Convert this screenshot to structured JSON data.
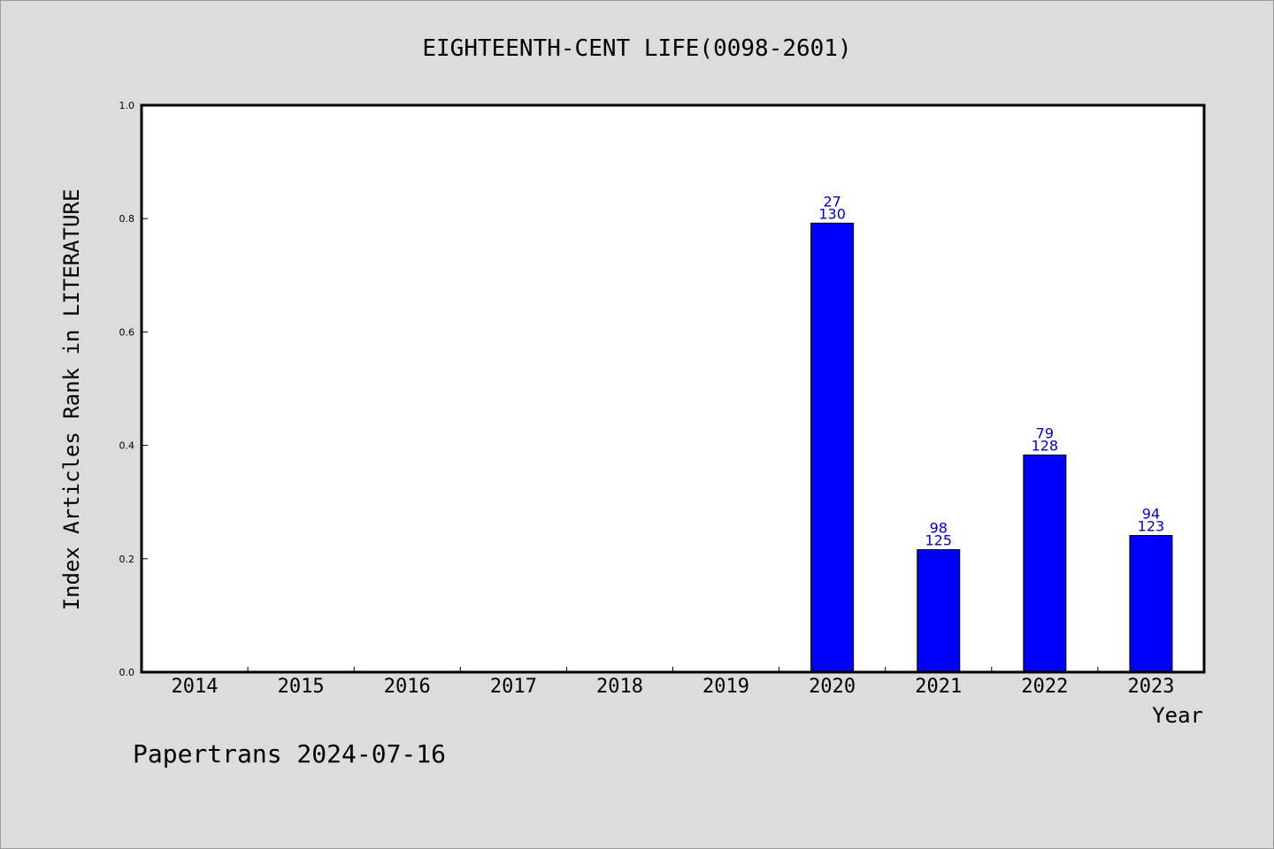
{
  "chart_data": {
    "type": "bar",
    "title": "EIGHTEENTH-CENT LIFE(0098-2601)",
    "xlabel": "Year",
    "ylabel": "Index Articles Rank in LITERATURE",
    "categories": [
      "2014",
      "2015",
      "2016",
      "2017",
      "2018",
      "2019",
      "2020",
      "2021",
      "2022",
      "2023"
    ],
    "values": [
      null,
      null,
      null,
      null,
      null,
      null,
      0.792,
      0.216,
      0.383,
      0.241
    ],
    "labels_top": [
      "",
      "",
      "",
      "",
      "",
      "",
      "27",
      "98",
      "79",
      "94"
    ],
    "labels_bottom": [
      "",
      "",
      "",
      "",
      "",
      "",
      "130",
      "125",
      "128",
      "123"
    ],
    "yticks": [
      "0.0",
      "0.2",
      "0.4",
      "0.6",
      "0.8",
      "1.0"
    ],
    "ylim": [
      0,
      1.0
    ],
    "grid": false,
    "legend": "none",
    "colors": {
      "bar": "#0000ff",
      "data_label": "#0000cc",
      "plot_background": "#ffffff",
      "figure_background": "#dcdcdc"
    }
  },
  "footer": "Papertrans 2024-07-16"
}
